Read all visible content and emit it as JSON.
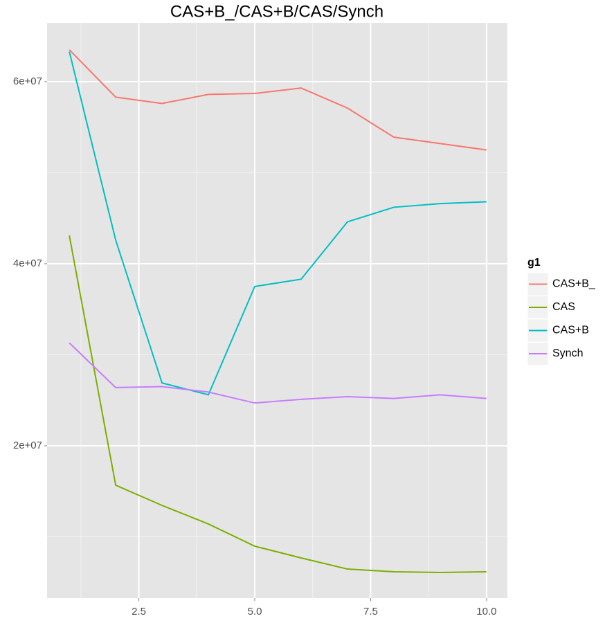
{
  "chart_data": {
    "type": "line",
    "title": "CAS+B_/CAS+B/CAS/Synch",
    "x": [
      1,
      2,
      3,
      4,
      5,
      6,
      7,
      8,
      9,
      10
    ],
    "series": [
      {
        "name": "CAS+B_",
        "color": "#F8766D",
        "values": [
          63500000,
          58300000,
          57600000,
          58600000,
          58700000,
          59300000,
          57100000,
          53900000,
          53200000,
          52500000
        ]
      },
      {
        "name": "CAS",
        "color": "#7CAE00",
        "values": [
          43100000,
          15670000,
          13450000,
          11410000,
          8970000,
          7680000,
          6460000,
          6160000,
          6080000,
          6160000
        ]
      },
      {
        "name": "CAS+B",
        "color": "#00BFC4",
        "values": [
          63300000,
          42600000,
          26900000,
          25600000,
          37500000,
          38300000,
          44600000,
          46200000,
          46600000,
          46800000
        ]
      },
      {
        "name": "Synch",
        "color": "#C77CFF",
        "values": [
          31300000,
          26400000,
          26500000,
          25900000,
          24700000,
          25100000,
          25400000,
          25200000,
          25600000,
          25200000
        ]
      }
    ],
    "xlim": [
      0.52,
      10.45
    ],
    "ylim": [
      3270000,
      66460000
    ],
    "xticks": [
      2.5,
      {
        "value": 5,
        "label": "5.0"
      },
      7.5,
      {
        "value": 10,
        "label": "10.0"
      }
    ],
    "yticks": [
      {
        "value": 20000000,
        "label": "2e+07"
      },
      {
        "value": 40000000,
        "label": "4e+07"
      },
      {
        "value": 60000000,
        "label": "6e+07"
      }
    ],
    "grid": true,
    "minor_grid": true,
    "legend_title": "g1",
    "legend_position": "right"
  }
}
